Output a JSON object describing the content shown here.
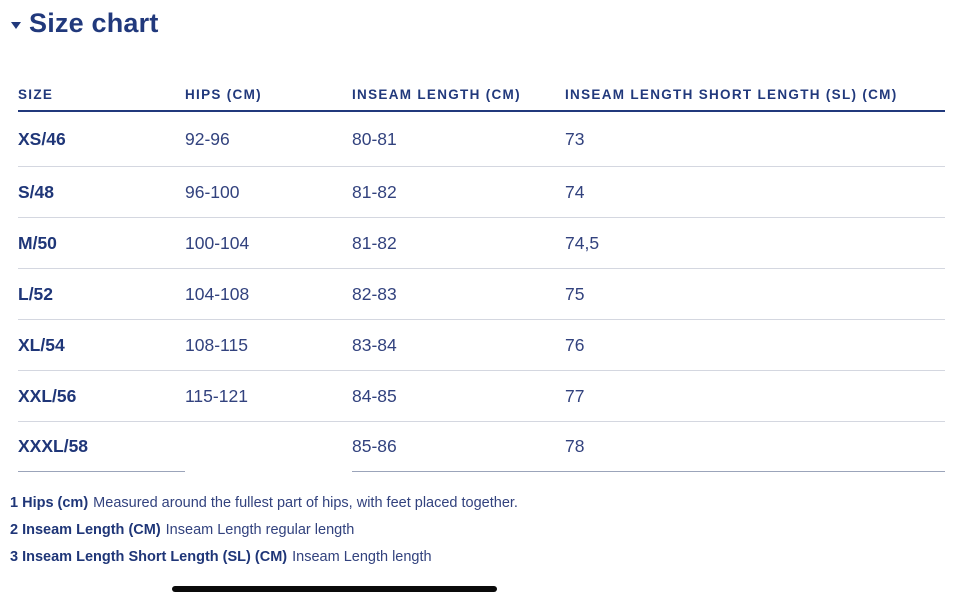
{
  "header": {
    "title": "Size chart",
    "caret_icon": "caret-down"
  },
  "table": {
    "columns": [
      "SIZE",
      "HIPS (CM)",
      "INSEAM LENGTH (CM)",
      "INSEAM LENGTH SHORT LENGTH (SL) (CM)"
    ],
    "rows": [
      {
        "size": "XS/46",
        "hips": "92-96",
        "inseam": "80-81",
        "inseam_sl": "73"
      },
      {
        "size": "S/48",
        "hips": "96-100",
        "inseam": "81-82",
        "inseam_sl": "74"
      },
      {
        "size": "M/50",
        "hips": "100-104",
        "inseam": "81-82",
        "inseam_sl": "74,5"
      },
      {
        "size": "L/52",
        "hips": "104-108",
        "inseam": "82-83",
        "inseam_sl": "75"
      },
      {
        "size": "XL/54",
        "hips": "108-115",
        "inseam": "83-84",
        "inseam_sl": "76"
      },
      {
        "size": "XXL/56",
        "hips": "115-121",
        "inseam": "84-85",
        "inseam_sl": "77"
      },
      {
        "size": "XXXL/58",
        "hips": "",
        "inseam": "85-86",
        "inseam_sl": "78"
      }
    ]
  },
  "footnotes": [
    {
      "label": "1 Hips (cm)",
      "text": "Measured around the fullest part of hips, with feet placed together."
    },
    {
      "label": "2 Inseam Length (CM)",
      "text": "Inseam Length regular length"
    },
    {
      "label": "3 Inseam Length Short Length (SL) (CM)",
      "text": "Inseam Length length"
    }
  ],
  "colors": {
    "navy": "#21397c",
    "cell_text": "#32427e",
    "divider_light": "#d4d7e0",
    "divider_dark": "#21397c",
    "scrollbar": "#0a0a0a"
  }
}
